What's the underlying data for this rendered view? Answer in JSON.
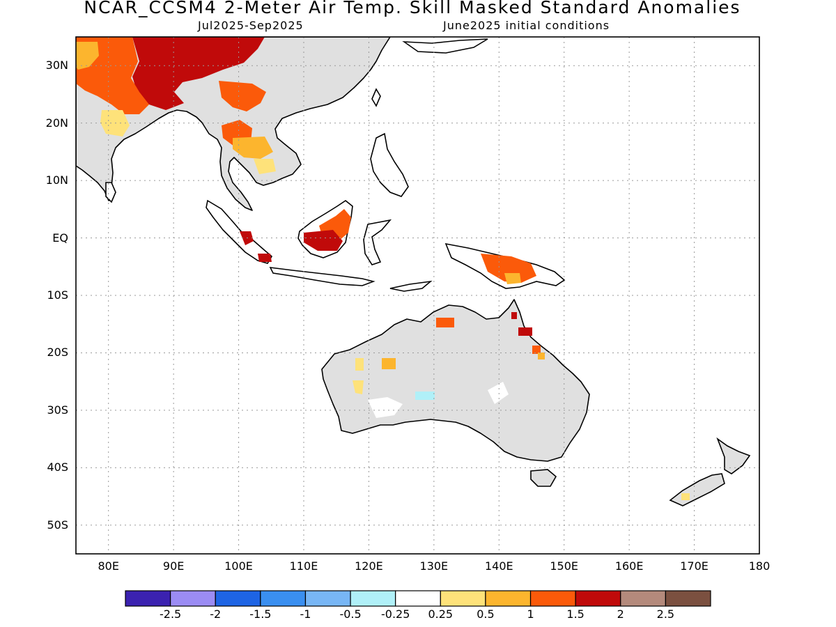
{
  "title": "NCAR_CCSM4 2-Meter Air Temp. Skill Masked Standard Anomalies",
  "subtitle_left": "Jul2025-Sep2025",
  "subtitle_right": "June2025 initial conditions",
  "map": {
    "projection": "lat-lon",
    "lon_range": [
      75,
      180
    ],
    "lat_range": [
      -55,
      35
    ],
    "grid": true,
    "masked_color": "#e0e0e0",
    "lat_ticks": [
      {
        "lat": 30,
        "label": "30N"
      },
      {
        "lat": 20,
        "label": "20N"
      },
      {
        "lat": 10,
        "label": "10N"
      },
      {
        "lat": 0,
        "label": "EQ"
      },
      {
        "lat": -10,
        "label": "10S"
      },
      {
        "lat": -20,
        "label": "20S"
      },
      {
        "lat": -30,
        "label": "30S"
      },
      {
        "lat": -40,
        "label": "40S"
      },
      {
        "lat": -50,
        "label": "50S"
      }
    ],
    "lon_ticks": [
      {
        "lon": 80,
        "label": "80E"
      },
      {
        "lon": 90,
        "label": "90E"
      },
      {
        "lon": 100,
        "label": "100E"
      },
      {
        "lon": 110,
        "label": "110E"
      },
      {
        "lon": 120,
        "label": "120E"
      },
      {
        "lon": 130,
        "label": "130E"
      },
      {
        "lon": 140,
        "label": "140E"
      },
      {
        "lon": 150,
        "label": "150E"
      },
      {
        "lon": 160,
        "label": "160E"
      },
      {
        "lon": 170,
        "label": "170E"
      },
      {
        "lon": 180,
        "label": "180"
      }
    ]
  },
  "colorbar": {
    "colors": [
      "#3b22b0",
      "#9b8cf4",
      "#1e64e4",
      "#3a8ff0",
      "#78b6f5",
      "#b0f0f8",
      "#ffffff",
      "#fee27a",
      "#fcb52e",
      "#fb5a0a",
      "#c00a0a",
      "#b48a7c",
      "#7b5040"
    ],
    "labels": [
      "-2.5",
      "-2",
      "-1.5",
      "-1",
      "-0.5",
      "-0.25",
      "0.25",
      "0.5",
      "1",
      "1.5",
      "2",
      "2.5"
    ]
  }
}
